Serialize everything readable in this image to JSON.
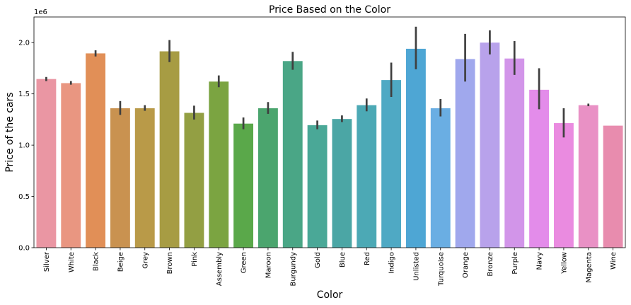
{
  "chart_data": {
    "type": "bar",
    "title": "Price Based on the Color",
    "xlabel": "Color",
    "ylabel": "Price of the cars",
    "y_offset_label": "1e6",
    "ylim": [
      0,
      2.25
    ],
    "y_ticks": [
      0.0,
      0.5,
      1.0,
      1.5,
      2.0
    ],
    "y_tick_labels": [
      "0.0",
      "0.5",
      "1.0",
      "1.5",
      "2.0"
    ],
    "grid": false,
    "categories": [
      "Silver",
      "White",
      "Black",
      "Beige",
      "Grey",
      "Brown",
      "Pink",
      "Assembly",
      "Green",
      "Maroon",
      "Burgundy",
      "Gold",
      "Blue",
      "Red",
      "Indigo",
      "Unlisted",
      "Turquoise",
      "Orange",
      "Bronze",
      "Purple",
      "Navy",
      "Yellow",
      "Magenta",
      "Wine"
    ],
    "values": [
      1.645,
      1.605,
      1.895,
      1.36,
      1.36,
      1.915,
      1.315,
      1.62,
      1.21,
      1.36,
      1.82,
      1.195,
      1.255,
      1.39,
      1.635,
      1.94,
      1.36,
      1.84,
      2.0,
      1.845,
      1.54,
      1.215,
      1.39,
      1.19
    ],
    "error_low": [
      1.625,
      1.59,
      1.865,
      1.295,
      1.335,
      1.81,
      1.25,
      1.565,
      1.155,
      1.305,
      1.735,
      1.155,
      1.225,
      1.33,
      1.47,
      1.74,
      1.28,
      1.62,
      1.885,
      1.685,
      1.35,
      1.075,
      1.38,
      null
    ],
    "error_high": [
      1.665,
      1.625,
      1.925,
      1.43,
      1.39,
      2.025,
      1.385,
      1.68,
      1.27,
      1.42,
      1.91,
      1.24,
      1.29,
      1.455,
      1.805,
      2.155,
      1.45,
      2.085,
      2.12,
      2.015,
      1.75,
      1.36,
      1.405,
      null
    ],
    "colors": [
      "#ea96a3",
      "#e99681",
      "#e18f57",
      "#c99250",
      "#b99a48",
      "#a79c43",
      "#939f43",
      "#7ba441",
      "#5aa84a",
      "#4ba56e",
      "#4aa686",
      "#4aa897",
      "#4ba6a5",
      "#4ca9b5",
      "#4fa9c4",
      "#4ea6d4",
      "#6aaee3",
      "#a0a8ed",
      "#b8a2eb",
      "#d295e9",
      "#e38cea",
      "#ea8be0",
      "#e991c5",
      "#e88cae"
    ]
  }
}
